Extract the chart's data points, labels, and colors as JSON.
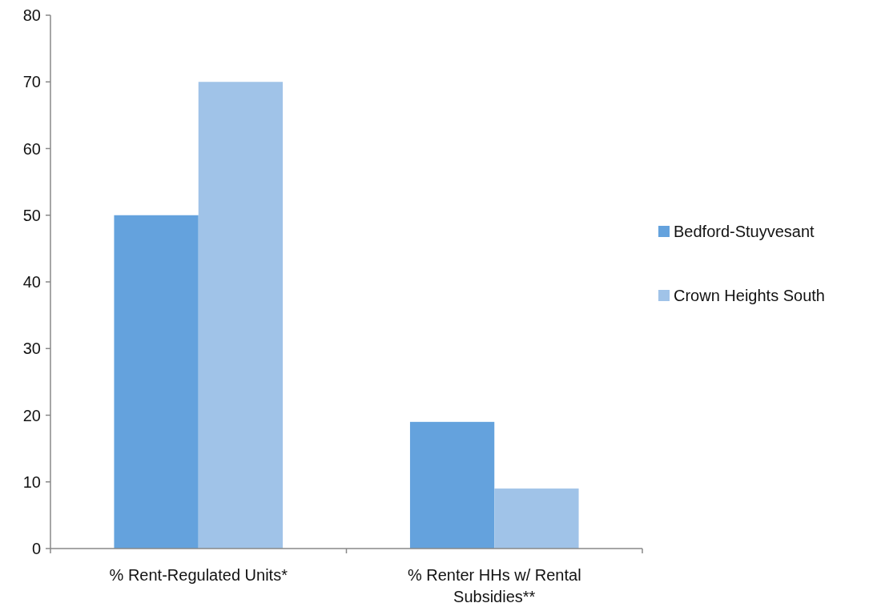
{
  "chart_data": {
    "type": "bar",
    "categories": [
      "% Rent-Regulated Units*",
      "% Renter HHs w/ Rental Subsidies**"
    ],
    "series": [
      {
        "name": "Bedford-Stuyvesant",
        "color": "#64a2dd",
        "values": [
          50,
          19
        ]
      },
      {
        "name": "Crown Heights South",
        "color": "#a0c3e8",
        "values": [
          70,
          9
        ]
      }
    ],
    "ylim": [
      0,
      80
    ],
    "yticks": [
      0,
      10,
      20,
      30,
      40,
      50,
      60,
      70,
      80
    ],
    "grid": false,
    "legend": "right"
  }
}
